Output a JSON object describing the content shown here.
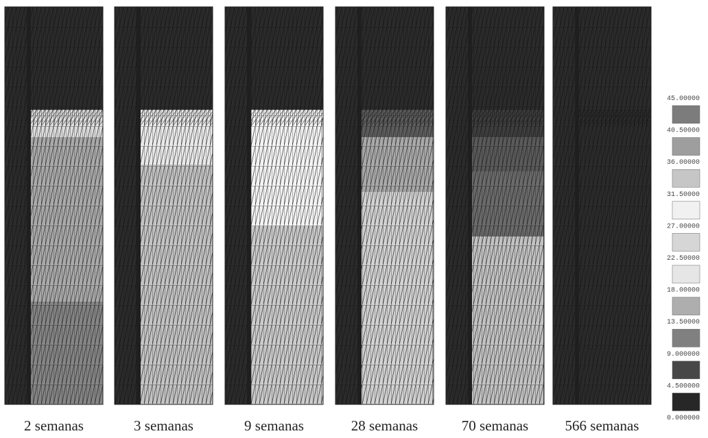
{
  "panels": [
    {
      "label": "2 semanas"
    },
    {
      "label": "3 semanas"
    },
    {
      "label": "9 semanas"
    },
    {
      "label": "28 semanas"
    },
    {
      "label": "70 semanas"
    },
    {
      "label": "566 semanas"
    }
  ],
  "legend": {
    "labels": [
      "45.00000",
      "40.50000",
      "36.00000",
      "31.50000",
      "27.00000",
      "22.50000",
      "18.00000",
      "13.50000",
      "9.000000",
      "4.500000",
      "0.000000"
    ],
    "colors": [
      "#7c7c7c",
      "#9e9e9e",
      "#c6c6c6",
      "#f1f1f1",
      "#d6d6d6",
      "#e6e6e6",
      "#aeaeae",
      "#808080",
      "#474747",
      "#272727"
    ]
  }
}
